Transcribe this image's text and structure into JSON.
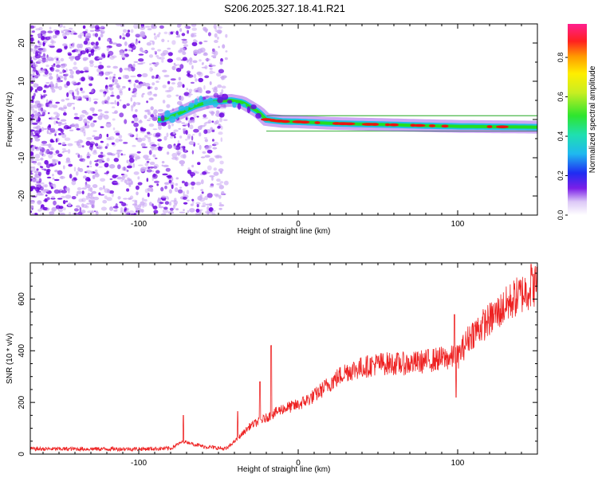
{
  "figure": {
    "title": "S206.2025.327.18.41.R21"
  },
  "colors": {
    "snr_line": "#ee2222",
    "dots_strong": "#6a00e0",
    "dots_faint": "#c9a6f3",
    "track_band": "#1fbfe8",
    "track_core": "#22dd22",
    "track_peak": "#ee1111",
    "guide_line": "#009900"
  },
  "chart_data": [
    {
      "type": "heatmap",
      "name": "spectrogram",
      "xlabel": "Height of straight line (km)",
      "ylabel": "Frequency (Hz)",
      "xlim": [
        -168,
        150
      ],
      "ylim": [
        -25,
        25
      ],
      "xticks": [
        -100,
        0,
        100
      ],
      "yticks": [
        -20,
        -10,
        0,
        10,
        20
      ],
      "colorbar": {
        "label": "Normalized spectral amplitude",
        "range": [
          0.0,
          0.97
        ],
        "ticks": [
          0.0,
          0.2,
          0.4,
          0.6,
          0.8
        ]
      },
      "noise_region_km": [
        -168,
        -45
      ],
      "track": [
        {
          "x": -85,
          "y": 0
        },
        {
          "x": -75,
          "y": 1.5
        },
        {
          "x": -65,
          "y": 3.5
        },
        {
          "x": -57,
          "y": 4.5
        },
        {
          "x": -50,
          "y": 4.8
        },
        {
          "x": -42,
          "y": 5
        },
        {
          "x": -35,
          "y": 4.5
        },
        {
          "x": -25,
          "y": 2
        },
        {
          "x": -20,
          "y": 0
        },
        {
          "x": -10,
          "y": -0.5
        },
        {
          "x": 0,
          "y": -0.6
        },
        {
          "x": 20,
          "y": -1
        },
        {
          "x": 50,
          "y": -1.3
        },
        {
          "x": 100,
          "y": -1.8
        },
        {
          "x": 150,
          "y": -2
        }
      ],
      "guide_lines_hz": [
        1,
        -3
      ]
    },
    {
      "type": "line",
      "name": "snr",
      "xlabel": "Height of straight line (km)",
      "ylabel": "SNR (10 * v/v)",
      "xlim": [
        -168,
        150
      ],
      "ylim": [
        0,
        740
      ],
      "xticks": [
        -100,
        0,
        100
      ],
      "yticks": [
        0,
        200,
        400,
        600
      ],
      "trend": [
        {
          "x": -168,
          "y": 20
        },
        {
          "x": -100,
          "y": 20
        },
        {
          "x": -80,
          "y": 22
        },
        {
          "x": -72,
          "y": 50
        },
        {
          "x": -60,
          "y": 30
        },
        {
          "x": -45,
          "y": 20
        },
        {
          "x": -38,
          "y": 60
        },
        {
          "x": -30,
          "y": 110
        },
        {
          "x": -20,
          "y": 140
        },
        {
          "x": -10,
          "y": 175
        },
        {
          "x": 0,
          "y": 190
        },
        {
          "x": 10,
          "y": 225
        },
        {
          "x": 20,
          "y": 275
        },
        {
          "x": 30,
          "y": 320
        },
        {
          "x": 50,
          "y": 350
        },
        {
          "x": 70,
          "y": 350
        },
        {
          "x": 90,
          "y": 370
        },
        {
          "x": 100,
          "y": 375
        },
        {
          "x": 108,
          "y": 460
        },
        {
          "x": 120,
          "y": 520
        },
        {
          "x": 135,
          "y": 600
        },
        {
          "x": 150,
          "y": 660
        }
      ],
      "spikes": [
        {
          "x": -72,
          "y": 150
        },
        {
          "x": -38,
          "y": 165
        },
        {
          "x": -24,
          "y": 280
        },
        {
          "x": -17,
          "y": 420
        },
        {
          "x": 98,
          "y": 540
        },
        {
          "x": 99,
          "y": 220
        },
        {
          "x": 146,
          "y": 735
        }
      ]
    }
  ]
}
